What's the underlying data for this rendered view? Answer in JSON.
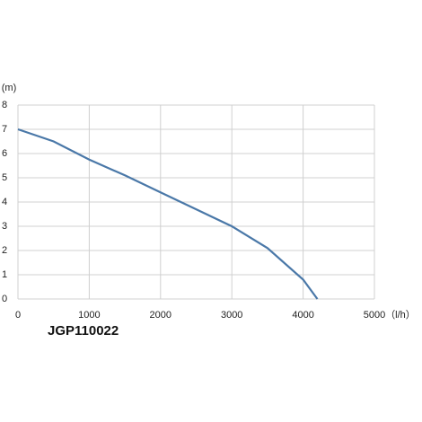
{
  "chart_data": {
    "type": "line",
    "title": "JGP110022",
    "y_label": "(m)",
    "x_label": "（l/h）",
    "x": [
      0,
      500,
      1000,
      1500,
      2000,
      2500,
      3000,
      3500,
      4000,
      4200
    ],
    "values": [
      7,
      6.5,
      5.75,
      5.1,
      4.4,
      3.7,
      3.0,
      2.1,
      0.8,
      0
    ],
    "color": "#4a78a8",
    "xlim": [
      0,
      5000
    ],
    "xticks": [
      0,
      1000,
      2000,
      3000,
      4000,
      5000
    ],
    "ylim": [
      0,
      8
    ],
    "yticks": [
      0,
      1,
      2,
      3,
      4,
      5,
      6,
      7,
      8
    ],
    "grid": true
  }
}
